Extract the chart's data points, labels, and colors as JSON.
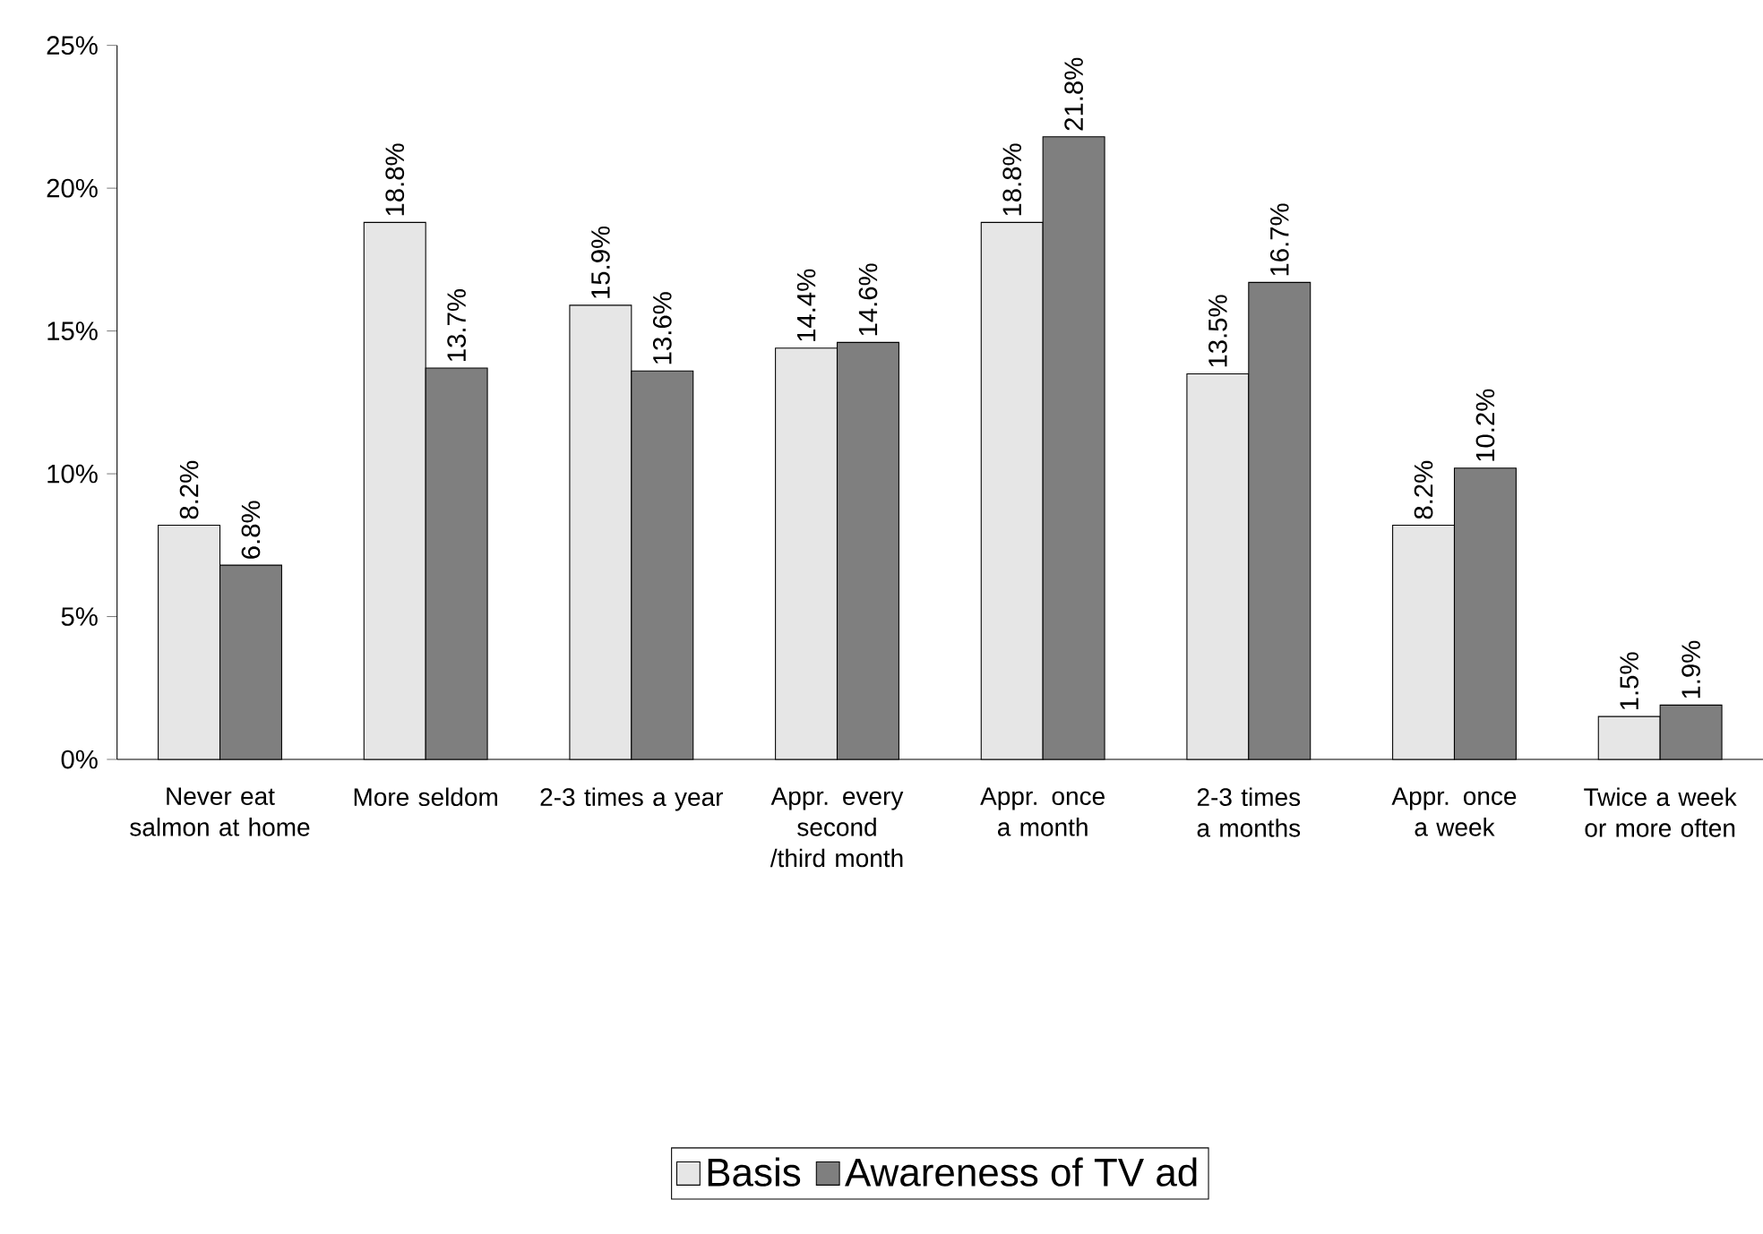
{
  "chart_data": {
    "type": "bar",
    "categories": [
      "Never eat salmon at home",
      "More seldom",
      "2-3 times a year",
      "Appr. every second /third month",
      "Appr. once a month",
      "2-3 times a months",
      "Appr. once a week",
      "Twice a week or more often"
    ],
    "series": [
      {
        "name": "Basis",
        "color": "#e6e6e6",
        "values": [
          8.2,
          18.8,
          15.9,
          14.4,
          18.8,
          13.5,
          8.2,
          1.5
        ],
        "value_labels": [
          "8.2%",
          "18.8%",
          "15.9%",
          "14.4%",
          "18.8%",
          "13.5%",
          "8.2%",
          "1.5%"
        ]
      },
      {
        "name": "Awareness of TV ad",
        "color": "#7f7f7f",
        "values": [
          6.8,
          13.7,
          13.6,
          14.6,
          21.8,
          16.7,
          10.2,
          1.9
        ],
        "value_labels": [
          "6.8%",
          "13.7%",
          "13.6%",
          "14.6%",
          "21.8%",
          "16.7%",
          "10.2%",
          "1.9%"
        ]
      }
    ],
    "ylim": [
      0,
      25
    ],
    "yticks": [
      {
        "value": 0,
        "label": "0%"
      },
      {
        "value": 5,
        "label": "5%"
      },
      {
        "value": 10,
        "label": "10%"
      },
      {
        "value": 15,
        "label": "15%"
      },
      {
        "value": 20,
        "label": "20%"
      },
      {
        "value": 25,
        "label": "25%"
      }
    ],
    "grid": false,
    "legend": "bottom"
  }
}
